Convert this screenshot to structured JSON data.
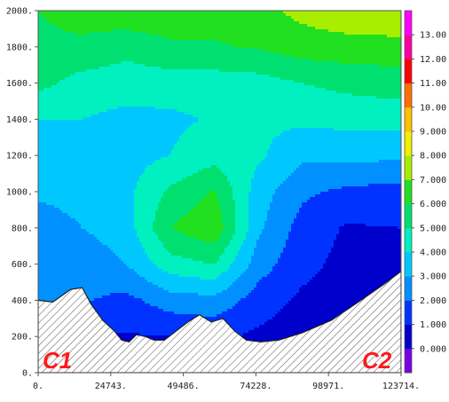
{
  "chart_data": {
    "type": "heatmap",
    "subtype": "filled contour cross-section",
    "title": "",
    "xlabel": "",
    "ylabel": "",
    "xlim": [
      0,
      123714
    ],
    "ylim": [
      0,
      2000
    ],
    "x_ticks": [
      "0.",
      "24743.",
      "49486.",
      "74228.",
      "98971.",
      "123714."
    ],
    "y_ticks": [
      "0.",
      "200.",
      "400.",
      "600.",
      "800.",
      "1000.",
      "1200.",
      "1400.",
      "1600.",
      "1800.",
      "2000."
    ],
    "endpoint_labels": {
      "left": "C1",
      "right": "C2"
    },
    "legend_position": "right",
    "colorbar": {
      "ticks": [
        "0.000",
        "1.000",
        "2.000",
        "3.000",
        "4.000",
        "5.000",
        "6.000",
        "7.000",
        "8.000",
        "9.000",
        "10.00",
        "11.00",
        "12.00",
        "13.00"
      ],
      "levels": [
        {
          "color": "#7a00e6"
        },
        {
          "color": "#0000cc"
        },
        {
          "color": "#0033ff"
        },
        {
          "color": "#0090ff"
        },
        {
          "color": "#00c8ff"
        },
        {
          "color": "#00f0c0"
        },
        {
          "color": "#00e070"
        },
        {
          "color": "#20e020"
        },
        {
          "color": "#a8ee00"
        },
        {
          "color": "#f0f000"
        },
        {
          "color": "#ffc000"
        },
        {
          "color": "#ff7000"
        },
        {
          "color": "#ff0000"
        },
        {
          "color": "#ff00a0"
        },
        {
          "color": "#ff00ff"
        }
      ]
    },
    "terrain": {
      "x": [
        0,
        5000,
        11000,
        15000,
        18000,
        22000,
        26000,
        28500,
        31000,
        33500,
        36500,
        39500,
        43000,
        47000,
        51000,
        55000,
        59000,
        63000,
        67000,
        71000,
        76000,
        82000,
        90000,
        100000,
        110000,
        118000,
        123714
      ],
      "y": [
        400,
        390,
        460,
        470,
        380,
        290,
        230,
        180,
        170,
        210,
        200,
        180,
        180,
        230,
        280,
        320,
        280,
        300,
        230,
        180,
        170,
        180,
        220,
        290,
        400,
        490,
        560
      ]
    },
    "field": {
      "x": [
        0,
        15000,
        30000,
        45000,
        60000,
        75000,
        90000,
        105000,
        123714
      ],
      "y": [
        0,
        200,
        400,
        600,
        800,
        1000,
        1200,
        1400,
        1600,
        1800,
        2000
      ],
      "values": [
        [
          1.0,
          0.5,
          0.2,
          0.3,
          0.5,
          0.4,
          0.2,
          0.0,
          -0.2
        ],
        [
          1.8,
          1.0,
          0.9,
          1.0,
          1.2,
          0.8,
          0.5,
          0.3,
          0.1
        ],
        [
          2.5,
          2.1,
          1.7,
          2.5,
          2.7,
          1.5,
          0.8,
          0.6,
          0.5
        ],
        [
          2.3,
          2.4,
          3.0,
          4.6,
          5.0,
          2.5,
          1.3,
          0.7,
          0.8
        ],
        [
          2.7,
          3.0,
          3.5,
          6.0,
          6.8,
          3.2,
          1.6,
          0.9,
          1.0
        ],
        [
          3.1,
          3.2,
          3.7,
          5.2,
          6.1,
          3.5,
          2.2,
          1.8,
          1.6
        ],
        [
          3.5,
          3.4,
          3.6,
          4.0,
          4.6,
          4.2,
          3.2,
          3.3,
          3.2
        ],
        [
          4.0,
          4.0,
          3.7,
          3.8,
          4.1,
          4.2,
          4.2,
          4.3,
          4.4
        ],
        [
          5.3,
          4.6,
          4.5,
          4.5,
          4.5,
          4.6,
          5.0,
          5.3,
          5.5
        ],
        [
          5.8,
          5.8,
          5.3,
          5.8,
          5.9,
          6.1,
          6.5,
          6.6,
          6.6
        ],
        [
          6.0,
          6.4,
          6.8,
          6.7,
          6.4,
          6.7,
          7.3,
          7.7,
          8.0
        ]
      ]
    }
  }
}
